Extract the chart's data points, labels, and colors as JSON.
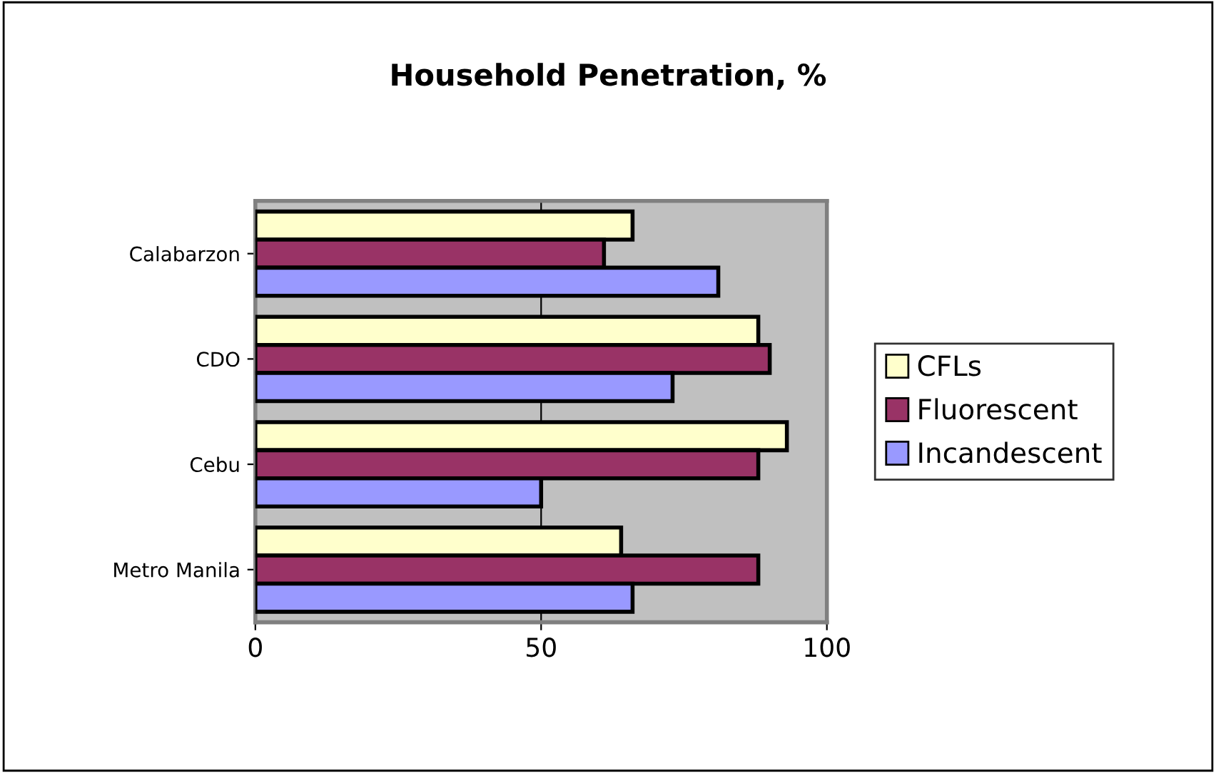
{
  "chart_data": {
    "type": "bar",
    "orientation": "horizontal",
    "title": "Household Penetration, %",
    "categories": [
      "Calabarzon",
      "CDO",
      "Cebu",
      "Metro Manila"
    ],
    "series": [
      {
        "name": "CFLs",
        "color": "#ffffcc",
        "values": [
          66,
          88,
          93,
          64
        ]
      },
      {
        "name": "Fluorescent",
        "color": "#993366",
        "values": [
          61,
          90,
          88,
          88
        ]
      },
      {
        "name": "Incandescent",
        "color": "#9999ff",
        "values": [
          81,
          73,
          50,
          66
        ]
      }
    ],
    "xlim": [
      0,
      100
    ],
    "xticks": [
      0,
      50,
      100
    ],
    "grid": "x",
    "legend": "right"
  }
}
